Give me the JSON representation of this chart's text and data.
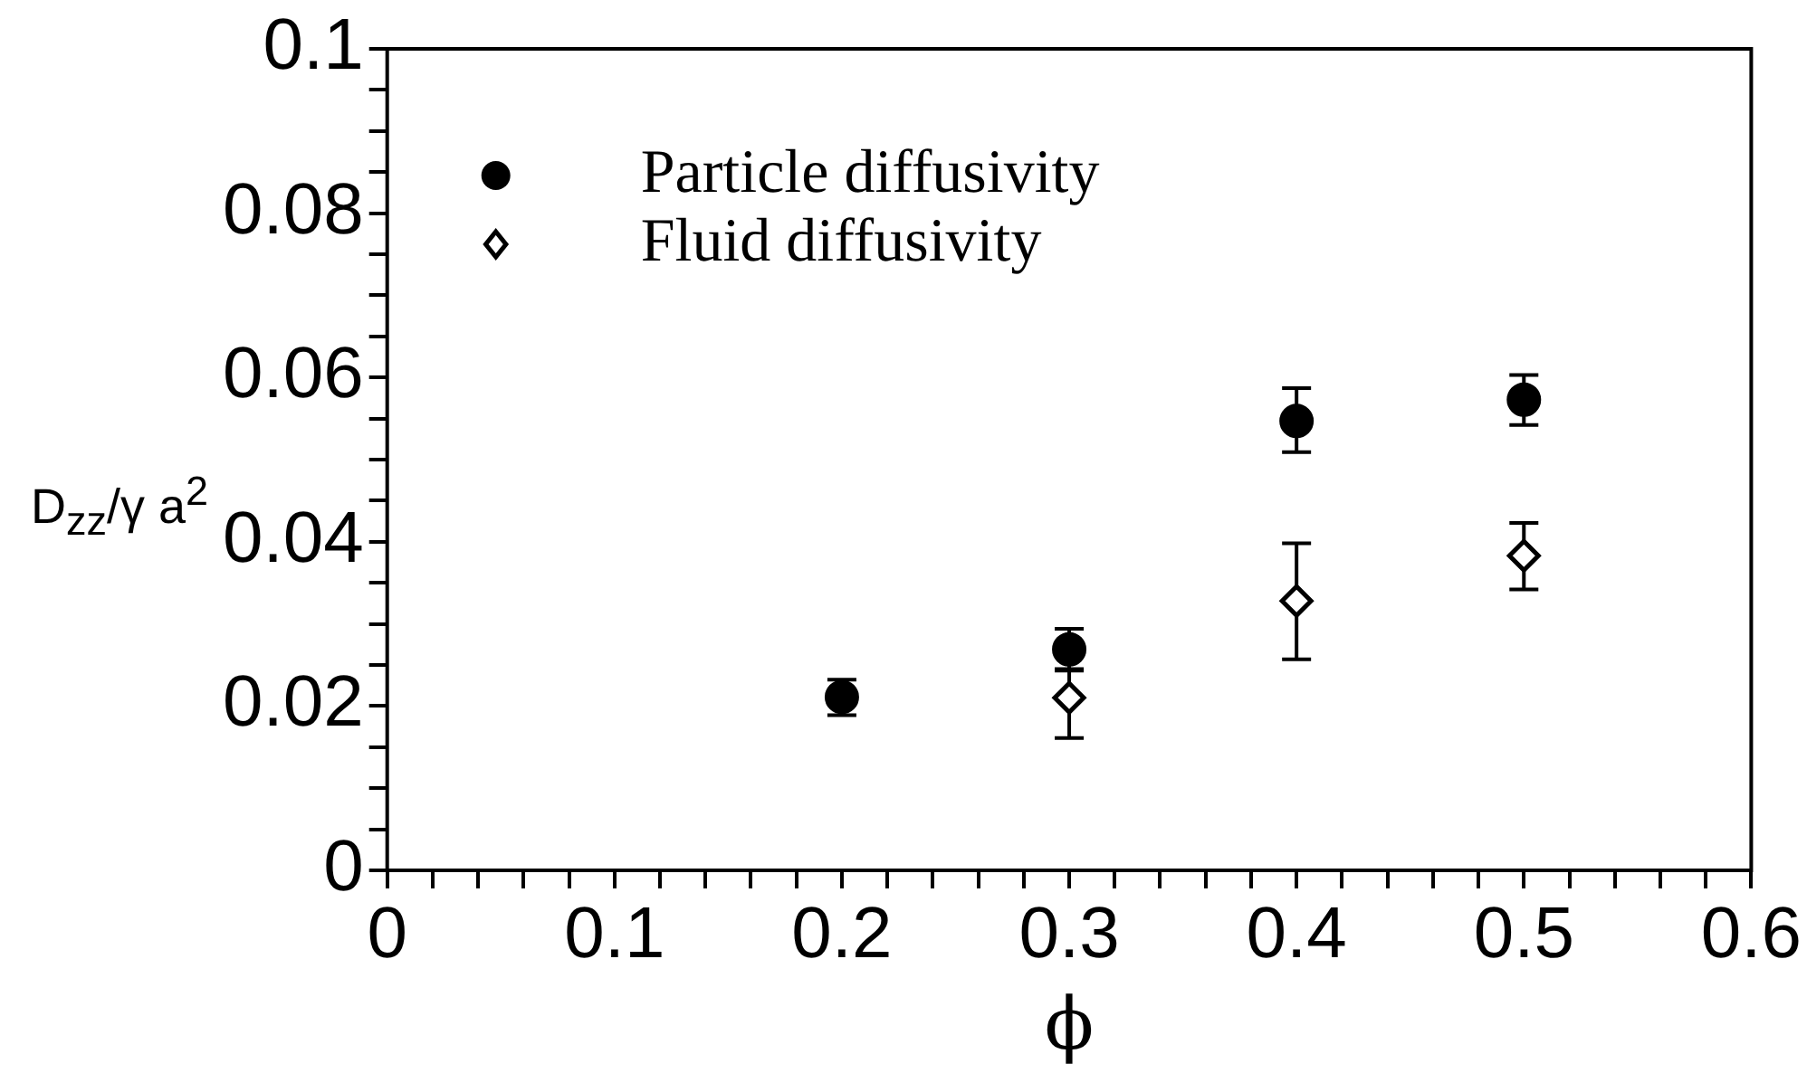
{
  "chart_data": {
    "type": "scatter",
    "xlabel": "ϕ",
    "ylabel": "D$_{zz}$/γ a$^{2}$",
    "xlim": [
      0,
      0.6
    ],
    "ylim": [
      0,
      0.1
    ],
    "xticks": [
      0,
      {
        "value": 0.02,
        "label": null
      },
      {
        "value": 0.04,
        "label": null
      },
      {
        "value": 0.06,
        "label": null
      },
      {
        "value": 0.08,
        "label": null
      },
      0.1,
      {
        "value": 0.12,
        "label": null
      },
      {
        "value": 0.14,
        "label": null
      },
      {
        "value": 0.16,
        "label": null
      },
      {
        "value": 0.18,
        "label": null
      },
      0.2,
      {
        "value": 0.22,
        "label": null
      },
      {
        "value": 0.24,
        "label": null
      },
      {
        "value": 0.26,
        "label": null
      },
      {
        "value": 0.28,
        "label": null
      },
      0.3,
      {
        "value": 0.32,
        "label": null
      },
      {
        "value": 0.34,
        "label": null
      },
      {
        "value": 0.36,
        "label": null
      },
      {
        "value": 0.38,
        "label": null
      },
      0.4,
      {
        "value": 0.42,
        "label": null
      },
      {
        "value": 0.44,
        "label": null
      },
      {
        "value": 0.46,
        "label": null
      },
      {
        "value": 0.48,
        "label": null
      },
      0.5,
      {
        "value": 0.52,
        "label": null
      },
      {
        "value": 0.54,
        "label": null
      },
      {
        "value": 0.56,
        "label": null
      },
      {
        "value": 0.58,
        "label": null
      },
      0.6
    ],
    "yticks": [
      0,
      {
        "value": 0.005,
        "label": null
      },
      {
        "value": 0.01,
        "label": null
      },
      {
        "value": 0.015,
        "label": null
      },
      0.02,
      {
        "value": 0.025,
        "label": null
      },
      {
        "value": 0.03,
        "label": null
      },
      {
        "value": 0.035,
        "label": null
      },
      0.04,
      {
        "value": 0.045,
        "label": null
      },
      {
        "value": 0.05,
        "label": null
      },
      {
        "value": 0.055,
        "label": null
      },
      0.06,
      {
        "value": 0.065,
        "label": null
      },
      {
        "value": 0.07,
        "label": null
      },
      {
        "value": 0.075,
        "label": null
      },
      0.08,
      {
        "value": 0.085,
        "label": null
      },
      {
        "value": 0.09,
        "label": null
      },
      {
        "value": 0.095,
        "label": null
      },
      0.1
    ],
    "grid": false,
    "legend": "top left",
    "series": [
      {
        "name": "Particle diffusivity",
        "color": "#000000",
        "marker": "circle",
        "x": [
          0.2,
          0.3,
          0.4,
          0.5
        ],
        "values": [
          0.0211,
          0.0269,
          0.0547,
          0.0573
        ],
        "errors": [
          [
            0.0189,
            0.0232
          ],
          [
            0.0245,
            0.0294
          ],
          [
            0.0509,
            0.0587
          ],
          [
            0.0542,
            0.0603
          ]
        ]
      },
      {
        "name": "Fluid diffusivity",
        "color": "#000000",
        "marker": "diamond",
        "x": [
          0.3,
          0.4,
          0.5
        ],
        "values": [
          0.021,
          0.0328,
          0.0383
        ],
        "errors": [
          [
            0.0161,
            0.0243
          ],
          [
            0.0257,
            0.0398
          ],
          [
            0.0342,
            0.0423
          ]
        ]
      }
    ]
  }
}
